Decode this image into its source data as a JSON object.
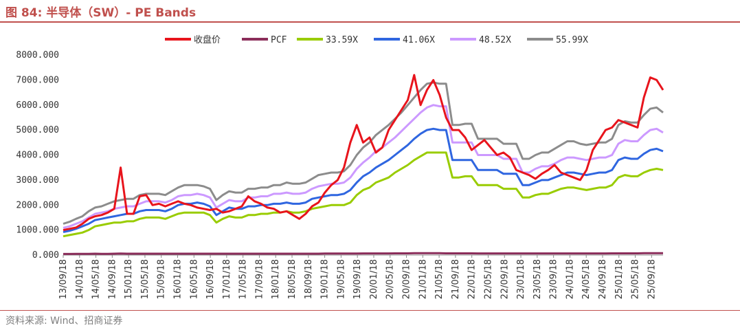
{
  "figure": {
    "title": "图 84:  半导体（SW）- PE Bands",
    "source": "资料来源: Wind、招商证券"
  },
  "chart_data": {
    "type": "line",
    "title": "半导体（SW）- PE Bands",
    "xlabel": "",
    "ylabel": "",
    "ylim": [
      0,
      8000
    ],
    "y_ticks": [
      "0.000",
      "1000.000",
      "2000.000",
      "3000.000",
      "4000.000",
      "5000.000",
      "6000.000",
      "7000.000",
      "8000.000"
    ],
    "x_ticks": [
      "13/09/18",
      "14/01/18",
      "14/05/18",
      "14/09/18",
      "15/01/18",
      "15/05/18",
      "15/09/18",
      "16/01/18",
      "16/05/18",
      "16/09/18",
      "17/01/18",
      "17/05/18",
      "17/09/18",
      "18/01/18",
      "18/05/18",
      "18/09/18",
      "19/01/18",
      "19/05/18",
      "19/09/18",
      "20/01/18",
      "20/05/18",
      "20/09/18",
      "21/01/18",
      "21/05/18",
      "21/09/18",
      "22/01/18",
      "22/05/18",
      "22/09/18",
      "23/01/18",
      "23/05/18",
      "23/09/18",
      "24/01/18",
      "24/05/18",
      "24/09/18",
      "25/01/18",
      "25/05/18",
      "25/09/18"
    ],
    "legend_position": "top-center",
    "grid": false,
    "series": [
      {
        "name": "收盘价",
        "color": "#e8141c",
        "values": [
          1000,
          1050,
          1100,
          1250,
          1450,
          1550,
          1600,
          1700,
          1850,
          3500,
          1650,
          1650,
          2350,
          2400,
          2000,
          2050,
          1950,
          2050,
          2150,
          2050,
          2000,
          1900,
          1850,
          1800,
          1850,
          1700,
          1750,
          1850,
          1950,
          2350,
          2150,
          2050,
          1900,
          1850,
          1700,
          1750,
          1600,
          1450,
          1650,
          1950,
          2100,
          2500,
          2800,
          3000,
          3500,
          4500,
          5200,
          4500,
          4700,
          4100,
          4300,
          5000,
          5400,
          5800,
          6200,
          7200,
          6000,
          6600,
          7000,
          6400,
          5500,
          5000,
          5000,
          4700,
          4200,
          4400,
          4600,
          4300,
          4000,
          4100,
          3900,
          3400,
          3300,
          3200,
          3050,
          3250,
          3400,
          3600,
          3300,
          3200,
          3100,
          3000,
          3400,
          4200,
          4600,
          5000,
          5100,
          5400,
          5300,
          5200,
          5100,
          6300,
          7100,
          7000,
          6600
        ]
      },
      {
        "name": "PCF",
        "color": "#8b2d5a",
        "values": [
          45,
          45,
          50,
          50,
          50,
          55,
          50,
          50,
          55,
          60,
          55,
          55,
          55,
          55,
          55,
          55,
          55,
          55,
          55,
          55,
          55,
          55,
          55,
          55,
          55,
          55,
          55,
          55,
          55,
          55,
          55,
          55,
          55,
          55,
          55,
          55,
          55,
          55,
          55,
          55,
          55,
          60,
          60,
          60,
          60,
          60,
          60,
          65,
          65,
          65,
          65,
          65,
          70,
          70,
          70,
          75,
          75,
          75,
          75,
          75,
          70,
          70,
          70,
          70,
          70,
          65,
          65,
          65,
          65,
          65,
          65,
          65,
          65,
          65,
          65,
          65,
          65,
          65,
          65,
          65,
          65,
          65,
          65,
          65,
          65,
          65,
          70,
          70,
          70,
          70,
          70,
          75,
          75,
          75,
          75
        ]
      },
      {
        "name": "33.59X",
        "color": "#99cc00",
        "values": [
          750,
          800,
          850,
          900,
          1000,
          1150,
          1200,
          1250,
          1300,
          1300,
          1350,
          1350,
          1450,
          1500,
          1500,
          1500,
          1450,
          1550,
          1650,
          1700,
          1700,
          1700,
          1700,
          1600,
          1300,
          1450,
          1550,
          1500,
          1500,
          1600,
          1600,
          1650,
          1650,
          1700,
          1700,
          1750,
          1700,
          1700,
          1750,
          1850,
          1900,
          1950,
          2000,
          2000,
          2000,
          2100,
          2400,
          2600,
          2700,
          2900,
          3000,
          3100,
          3300,
          3450,
          3600,
          3800,
          3950,
          4100,
          4100,
          4100,
          4100,
          3100,
          3100,
          3150,
          3150,
          2800,
          2800,
          2800,
          2800,
          2650,
          2650,
          2650,
          2300,
          2300,
          2400,
          2450,
          2450,
          2550,
          2650,
          2700,
          2700,
          2650,
          2600,
          2650,
          2700,
          2700,
          2800,
          3100,
          3200,
          3150,
          3150,
          3300,
          3400,
          3450,
          3400
        ]
      },
      {
        "name": "41.06X",
        "color": "#2f66e0",
        "values": [
          920,
          970,
          1050,
          1150,
          1250,
          1400,
          1450,
          1500,
          1550,
          1600,
          1650,
          1650,
          1750,
          1800,
          1800,
          1800,
          1750,
          1850,
          2000,
          2050,
          2050,
          2100,
          2050,
          1950,
          1600,
          1750,
          1900,
          1850,
          1850,
          1950,
          1950,
          2000,
          2000,
          2050,
          2050,
          2100,
          2050,
          2050,
          2100,
          2250,
          2300,
          2350,
          2400,
          2400,
          2450,
          2600,
          2900,
          3150,
          3300,
          3500,
          3650,
          3800,
          4000,
          4200,
          4400,
          4650,
          4850,
          5000,
          5050,
          5000,
          5000,
          3800,
          3800,
          3800,
          3800,
          3400,
          3400,
          3400,
          3400,
          3250,
          3250,
          3250,
          2800,
          2800,
          2900,
          3000,
          3000,
          3100,
          3200,
          3300,
          3300,
          3250,
          3200,
          3250,
          3300,
          3300,
          3400,
          3800,
          3900,
          3850,
          3850,
          4050,
          4200,
          4250,
          4150
        ]
      },
      {
        "name": "48.52X",
        "color": "#cc99ff",
        "values": [
          1090,
          1150,
          1250,
          1350,
          1500,
          1650,
          1700,
          1750,
          1850,
          1900,
          1950,
          1950,
          2050,
          2150,
          2150,
          2150,
          2100,
          2200,
          2350,
          2400,
          2400,
          2450,
          2400,
          2300,
          1900,
          2050,
          2200,
          2150,
          2150,
          2300,
          2300,
          2350,
          2350,
          2450,
          2450,
          2500,
          2450,
          2450,
          2500,
          2650,
          2750,
          2800,
          2850,
          2850,
          2900,
          3100,
          3450,
          3700,
          3900,
          4150,
          4300,
          4500,
          4700,
          4950,
          5200,
          5450,
          5700,
          5900,
          6000,
          5950,
          5950,
          4500,
          4500,
          4500,
          4500,
          4000,
          4000,
          4000,
          4000,
          3850,
          3850,
          3850,
          3300,
          3300,
          3450,
          3550,
          3550,
          3650,
          3800,
          3900,
          3900,
          3850,
          3800,
          3850,
          3900,
          3900,
          4000,
          4450,
          4600,
          4550,
          4550,
          4800,
          5000,
          5050,
          4900
        ]
      },
      {
        "name": "55.99X",
        "color": "#8c8c8c",
        "values": [
          1250,
          1330,
          1450,
          1550,
          1750,
          1900,
          1950,
          2050,
          2150,
          2200,
          2250,
          2250,
          2400,
          2450,
          2450,
          2450,
          2400,
          2550,
          2700,
          2800,
          2800,
          2800,
          2750,
          2650,
          2200,
          2400,
          2550,
          2500,
          2500,
          2650,
          2650,
          2700,
          2700,
          2800,
          2800,
          2900,
          2850,
          2850,
          2900,
          3050,
          3200,
          3250,
          3300,
          3300,
          3350,
          3600,
          4000,
          4300,
          4500,
          4800,
          5000,
          5200,
          5450,
          5700,
          6000,
          6300,
          6600,
          6850,
          6900,
          6850,
          6850,
          5200,
          5200,
          5250,
          5250,
          4650,
          4650,
          4650,
          4650,
          4450,
          4450,
          4450,
          3850,
          3850,
          4000,
          4100,
          4100,
          4250,
          4400,
          4550,
          4550,
          4450,
          4400,
          4450,
          4500,
          4500,
          4650,
          5200,
          5350,
          5300,
          5300,
          5600,
          5850,
          5900,
          5700
        ]
      }
    ]
  }
}
